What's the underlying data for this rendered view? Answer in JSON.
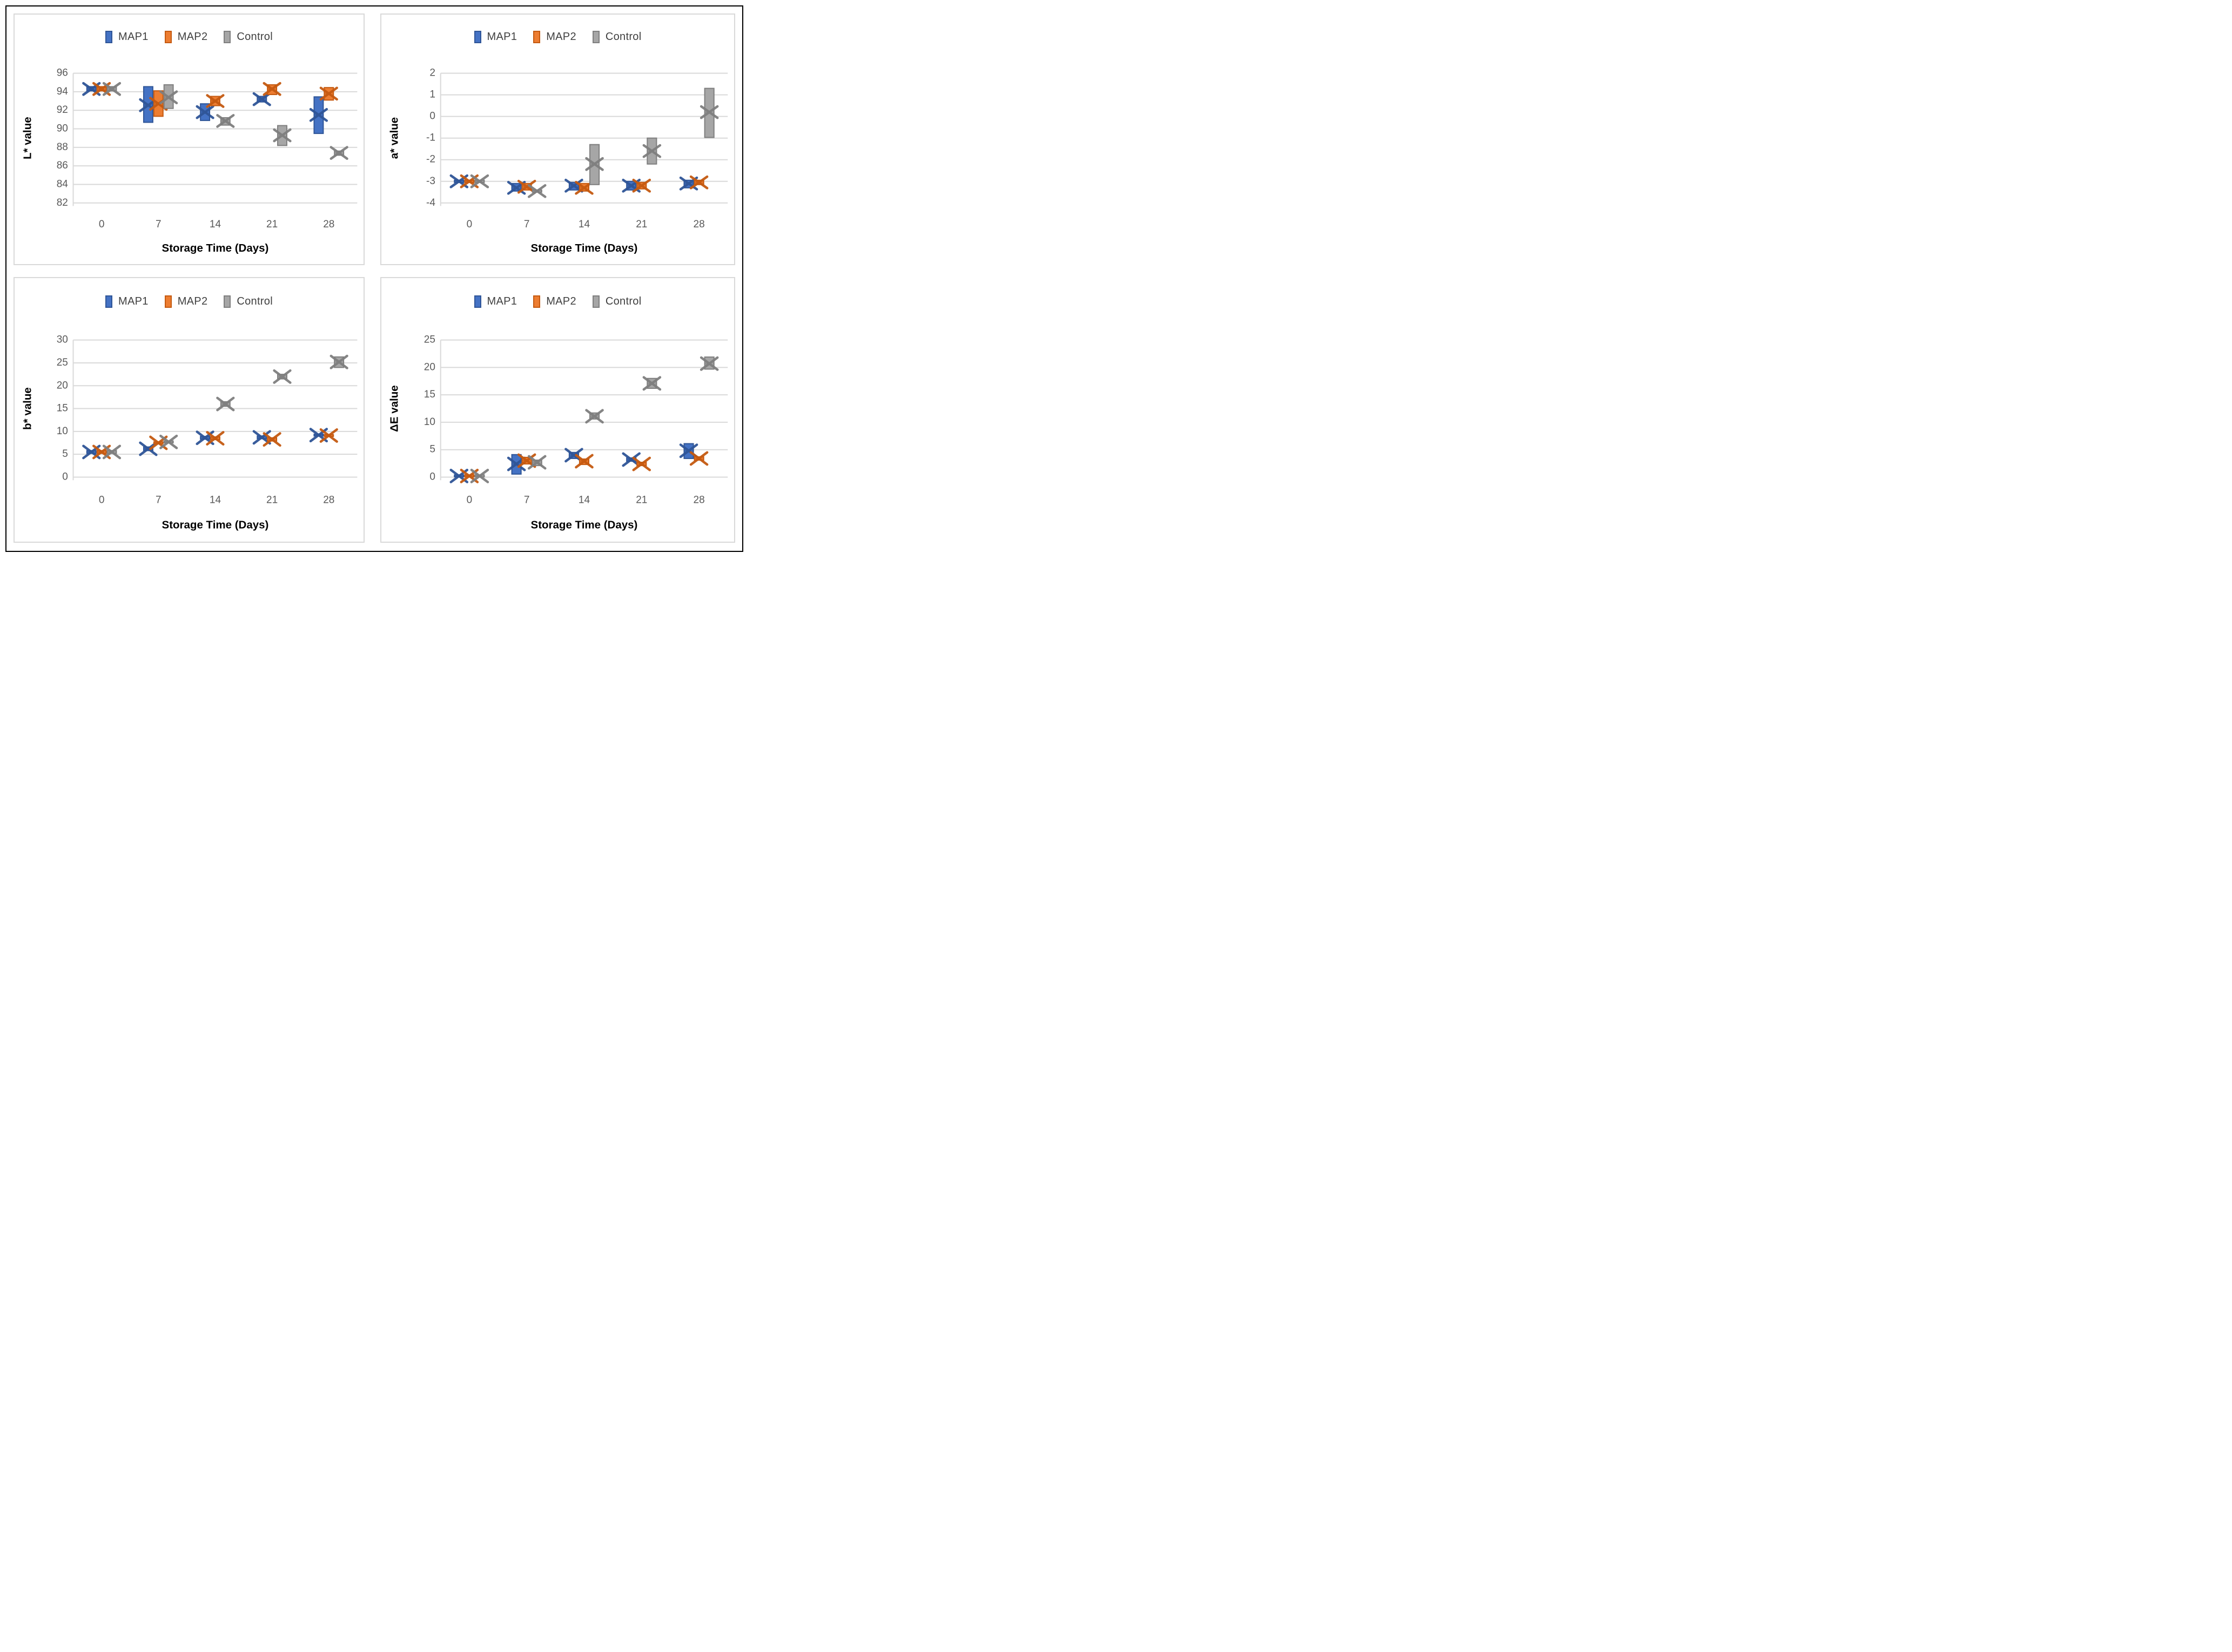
{
  "figure": {
    "background": "#ffffff",
    "outer_border_color": "#000000",
    "panel_border_color": "#d9d9d9",
    "gridline_color": "#d9d9d9",
    "tick_text_color": "#595959",
    "legend_text_color": "#404040"
  },
  "legend": {
    "items": [
      {
        "label": "MAP1",
        "fill": "#4472C4",
        "stroke": "#2F5597"
      },
      {
        "label": "MAP2",
        "fill": "#ED7D31",
        "stroke": "#C55A11"
      },
      {
        "label": "Control",
        "fill": "#A6A6A6",
        "stroke": "#7F7F7F"
      }
    ]
  },
  "chart_data": [
    {
      "type": "box",
      "id": "l-star",
      "ylabel": "L* value",
      "xlabel": "Storage Time (Days)",
      "categories": [
        "0",
        "7",
        "14",
        "21",
        "28"
      ],
      "ylim": [
        82,
        96
      ],
      "yticks": [
        96,
        94,
        92,
        90,
        88,
        86,
        84,
        82
      ],
      "grid": true,
      "legend_position": "top-center",
      "series": [
        {
          "name": "MAP1",
          "fill": "#4472C4",
          "stroke": "#2F5597",
          "points": [
            {
              "lo": 94.1,
              "hi": 94.55,
              "mean": 94.3
            },
            {
              "lo": 90.7,
              "hi": 94.55,
              "mean": 92.55
            },
            {
              "lo": 90.9,
              "hi": 92.7,
              "mean": 91.8
            },
            {
              "lo": 92.9,
              "hi": 93.5,
              "mean": 93.2
            },
            {
              "lo": 89.5,
              "hi": 93.45,
              "mean": 91.5
            }
          ]
        },
        {
          "name": "MAP2",
          "fill": "#ED7D31",
          "stroke": "#C55A11",
          "points": [
            {
              "lo": 94.1,
              "hi": 94.55,
              "mean": 94.3
            },
            {
              "lo": 91.35,
              "hi": 94.1,
              "mean": 92.7
            },
            {
              "lo": 92.5,
              "hi": 93.5,
              "mean": 93.0
            },
            {
              "lo": 93.7,
              "hi": 94.75,
              "mean": 94.3
            },
            {
              "lo": 93.1,
              "hi": 94.45,
              "mean": 93.8
            }
          ]
        },
        {
          "name": "Control",
          "fill": "#A6A6A6",
          "stroke": "#7F7F7F",
          "points": [
            {
              "lo": 94.1,
              "hi": 94.55,
              "mean": 94.3
            },
            {
              "lo": 92.2,
              "hi": 94.75,
              "mean": 93.4
            },
            {
              "lo": 90.4,
              "hi": 91.2,
              "mean": 90.85
            },
            {
              "lo": 88.2,
              "hi": 90.35,
              "mean": 89.3
            },
            {
              "lo": 87.15,
              "hi": 87.6,
              "mean": 87.4
            }
          ]
        }
      ]
    },
    {
      "type": "box",
      "id": "a-star",
      "ylabel": "a* value",
      "xlabel": "Storage Time (Days)",
      "categories": [
        "0",
        "7",
        "14",
        "21",
        "28"
      ],
      "ylim": [
        -4,
        2
      ],
      "yticks": [
        2,
        1,
        0,
        -1,
        -2,
        -3,
        -4
      ],
      "grid": true,
      "legend_position": "top-center",
      "series": [
        {
          "name": "MAP1",
          "fill": "#4472C4",
          "stroke": "#2F5597",
          "points": [
            {
              "lo": -3.05,
              "hi": -2.95,
              "mean": -3.0
            },
            {
              "lo": -3.45,
              "hi": -3.1,
              "mean": -3.3
            },
            {
              "lo": -3.4,
              "hi": -3.05,
              "mean": -3.2
            },
            {
              "lo": -3.4,
              "hi": -3.0,
              "mean": -3.2
            },
            {
              "lo": -3.3,
              "hi": -2.95,
              "mean": -3.1
            }
          ]
        },
        {
          "name": "MAP2",
          "fill": "#ED7D31",
          "stroke": "#C55A11",
          "points": [
            {
              "lo": -3.05,
              "hi": -2.95,
              "mean": -3.0
            },
            {
              "lo": -3.4,
              "hi": -3.1,
              "mean": -3.25
            },
            {
              "lo": -3.45,
              "hi": -3.1,
              "mean": -3.3
            },
            {
              "lo": -3.35,
              "hi": -3.05,
              "mean": -3.2
            },
            {
              "lo": -3.15,
              "hi": -2.95,
              "mean": -3.05
            }
          ]
        },
        {
          "name": "Control",
          "fill": "#A6A6A6",
          "stroke": "#7F7F7F",
          "points": [
            {
              "lo": -3.05,
              "hi": -2.95,
              "mean": -3.0
            },
            {
              "lo": -3.5,
              "hi": -3.4,
              "mean": -3.45
            },
            {
              "lo": -3.15,
              "hi": -1.3,
              "mean": -2.2
            },
            {
              "lo": -2.2,
              "hi": -1.0,
              "mean": -1.6
            },
            {
              "lo": -0.97,
              "hi": 1.3,
              "mean": 0.2
            }
          ]
        }
      ]
    },
    {
      "type": "box",
      "id": "b-star",
      "ylabel": "b* value",
      "xlabel": "Storage Time (Days)",
      "categories": [
        "0",
        "7",
        "14",
        "21",
        "28"
      ],
      "ylim": [
        0,
        30
      ],
      "yticks": [
        30,
        25,
        20,
        15,
        10,
        5,
        0
      ],
      "grid": true,
      "legend_position": "top-center",
      "series": [
        {
          "name": "MAP1",
          "fill": "#4472C4",
          "stroke": "#2F5597",
          "points": [
            {
              "lo": 5.2,
              "hi": 5.8,
              "mean": 5.5
            },
            {
              "lo": 5.8,
              "hi": 6.6,
              "mean": 6.2
            },
            {
              "lo": 8.3,
              "hi": 8.9,
              "mean": 8.6
            },
            {
              "lo": 8.4,
              "hi": 9.0,
              "mean": 8.7
            },
            {
              "lo": 9.0,
              "hi": 9.4,
              "mean": 9.2
            }
          ]
        },
        {
          "name": "MAP2",
          "fill": "#ED7D31",
          "stroke": "#C55A11",
          "points": [
            {
              "lo": 5.2,
              "hi": 5.8,
              "mean": 5.5
            },
            {
              "lo": 7.3,
              "hi": 7.7,
              "mean": 7.5
            },
            {
              "lo": 8.2,
              "hi": 8.8,
              "mean": 8.5
            },
            {
              "lo": 7.9,
              "hi": 8.6,
              "mean": 8.25
            },
            {
              "lo": 8.9,
              "hi": 9.3,
              "mean": 9.1
            }
          ]
        },
        {
          "name": "Control",
          "fill": "#A6A6A6",
          "stroke": "#7F7F7F",
          "points": [
            {
              "lo": 5.2,
              "hi": 5.8,
              "mean": 5.5
            },
            {
              "lo": 7.5,
              "hi": 7.9,
              "mean": 7.7
            },
            {
              "lo": 15.5,
              "hi": 16.5,
              "mean": 16.0
            },
            {
              "lo": 21.5,
              "hi": 22.5,
              "mean": 22.0
            },
            {
              "lo": 24.0,
              "hi": 26.3,
              "mean": 25.2
            }
          ]
        }
      ]
    },
    {
      "type": "box",
      "id": "delta-e",
      "ylabel": "ΔE value",
      "xlabel": "Storage Time (Days)",
      "categories": [
        "0",
        "7",
        "14",
        "21",
        "28"
      ],
      "ylim": [
        0,
        25
      ],
      "yticks": [
        25,
        20,
        15,
        10,
        5,
        0
      ],
      "grid": true,
      "legend_position": "top-center",
      "series": [
        {
          "name": "MAP1",
          "fill": "#4472C4",
          "stroke": "#2F5597",
          "points": [
            {
              "lo": 0.05,
              "hi": 0.4,
              "mean": 0.2
            },
            {
              "lo": 0.55,
              "hi": 4.1,
              "mean": 2.4
            },
            {
              "lo": 3.4,
              "hi": 4.5,
              "mean": 4.0
            },
            {
              "lo": 2.9,
              "hi": 3.5,
              "mean": 3.2
            },
            {
              "lo": 3.4,
              "hi": 6.1,
              "mean": 4.8
            }
          ]
        },
        {
          "name": "MAP2",
          "fill": "#ED7D31",
          "stroke": "#C55A11",
          "points": [
            {
              "lo": 0.05,
              "hi": 0.4,
              "mean": 0.2
            },
            {
              "lo": 2.4,
              "hi": 3.6,
              "mean": 3.0
            },
            {
              "lo": 2.3,
              "hi": 3.3,
              "mean": 2.9
            },
            {
              "lo": 2.1,
              "hi": 2.7,
              "mean": 2.4
            },
            {
              "lo": 3.1,
              "hi": 3.7,
              "mean": 3.4
            }
          ]
        },
        {
          "name": "Control",
          "fill": "#A6A6A6",
          "stroke": "#7F7F7F",
          "points": [
            {
              "lo": 0.05,
              "hi": 0.4,
              "mean": 0.2
            },
            {
              "lo": 2.1,
              "hi": 3.1,
              "mean": 2.7
            },
            {
              "lo": 10.6,
              "hi": 11.7,
              "mean": 11.1
            },
            {
              "lo": 16.2,
              "hi": 18.0,
              "mean": 17.1
            },
            {
              "lo": 19.7,
              "hi": 21.9,
              "mean": 20.7
            }
          ]
        }
      ]
    }
  ]
}
